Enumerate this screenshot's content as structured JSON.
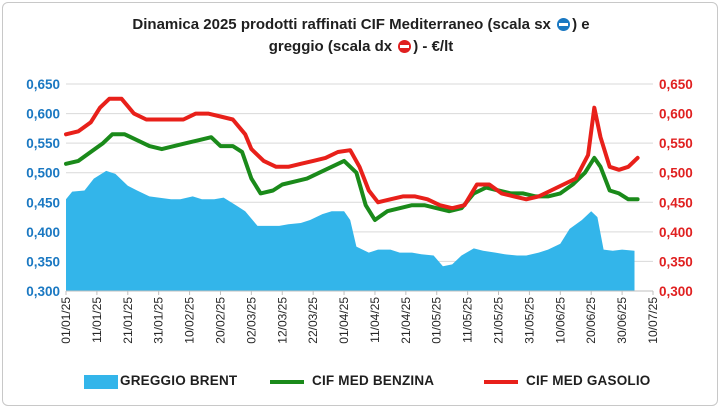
{
  "title": {
    "line1": "Dinamica 2025 prodotti raffinati CIF Mediterraneo (scala sx",
    "line1_end": ") e",
    "line2": "greggio (scala dx",
    "line2_end": ") - €/lt",
    "left_scale_icon": "blue-circle-minus-icon",
    "right_scale_icon": "red-circle-minus-icon"
  },
  "chart_data": {
    "type": "area",
    "title": "Dinamica 2025 prodotti raffinati CIF Mediterraneo (scala sx ⊖) e greggio (scala dx ⊖) - €/lt",
    "x_ticks": [
      "01/01/25",
      "11/01/25",
      "21/01/25",
      "31/01/25",
      "10/02/25",
      "20/02/25",
      "02/03/25",
      "12/03/25",
      "22/03/25",
      "01/04/25",
      "11/04/25",
      "21/04/25",
      "01/05/25",
      "11/05/25",
      "21/05/25",
      "31/05/25",
      "10/06/25",
      "20/06/25",
      "30/06/25",
      "10/07/25"
    ],
    "x_range": [
      "01/01/25",
      "10/07/25"
    ],
    "y_left": {
      "min": 0.3,
      "max": 0.65,
      "ticks": [
        "0,300",
        "0,350",
        "0,400",
        "0,450",
        "0,500",
        "0,550",
        "0,600",
        "0,650"
      ],
      "color": "#1a78c2"
    },
    "y_right": {
      "min": 0.3,
      "max": 0.65,
      "ticks": [
        "0,300",
        "0,350",
        "0,400",
        "0,450",
        "0,500",
        "0,550",
        "0,600",
        "0,650"
      ],
      "color": "#e02020"
    },
    "grid": "horizontal",
    "legend_position": "bottom",
    "series": [
      {
        "name": "GREGGIO BRENT",
        "kind": "area",
        "color": "#33b5ea",
        "points": [
          [
            "01/01/25",
            0.455
          ],
          [
            "03/01/25",
            0.468
          ],
          [
            "07/01/25",
            0.47
          ],
          [
            "10/01/25",
            0.49
          ],
          [
            "14/01/25",
            0.503
          ],
          [
            "17/01/25",
            0.498
          ],
          [
            "21/01/25",
            0.478
          ],
          [
            "24/01/25",
            0.47
          ],
          [
            "28/01/25",
            0.46
          ],
          [
            "31/01/25",
            0.458
          ],
          [
            "04/02/25",
            0.455
          ],
          [
            "07/02/25",
            0.455
          ],
          [
            "11/02/25",
            0.46
          ],
          [
            "14/02/25",
            0.455
          ],
          [
            "18/02/25",
            0.455
          ],
          [
            "21/02/25",
            0.458
          ],
          [
            "25/02/25",
            0.445
          ],
          [
            "28/02/25",
            0.435
          ],
          [
            "04/03/25",
            0.41
          ],
          [
            "07/03/25",
            0.41
          ],
          [
            "11/03/25",
            0.41
          ],
          [
            "14/03/25",
            0.413
          ],
          [
            "18/03/25",
            0.415
          ],
          [
            "21/03/25",
            0.42
          ],
          [
            "25/03/25",
            0.43
          ],
          [
            "28/03/25",
            0.435
          ],
          [
            "01/04/25",
            0.435
          ],
          [
            "03/04/25",
            0.42
          ],
          [
            "05/04/25",
            0.375
          ],
          [
            "09/04/25",
            0.365
          ],
          [
            "12/04/25",
            0.37
          ],
          [
            "16/04/25",
            0.37
          ],
          [
            "19/04/25",
            0.365
          ],
          [
            "23/04/25",
            0.365
          ],
          [
            "26/04/25",
            0.362
          ],
          [
            "30/04/25",
            0.36
          ],
          [
            "03/05/25",
            0.342
          ],
          [
            "06/05/25",
            0.345
          ],
          [
            "09/05/25",
            0.36
          ],
          [
            "13/05/25",
            0.372
          ],
          [
            "16/05/25",
            0.368
          ],
          [
            "20/05/25",
            0.365
          ],
          [
            "23/05/25",
            0.362
          ],
          [
            "27/05/25",
            0.36
          ],
          [
            "30/05/25",
            0.36
          ],
          [
            "03/06/25",
            0.365
          ],
          [
            "06/06/25",
            0.37
          ],
          [
            "10/06/25",
            0.38
          ],
          [
            "13/06/25",
            0.405
          ],
          [
            "17/06/25",
            0.42
          ],
          [
            "20/06/25",
            0.435
          ],
          [
            "22/06/25",
            0.425
          ],
          [
            "24/06/25",
            0.37
          ],
          [
            "27/06/25",
            0.368
          ],
          [
            "30/06/25",
            0.37
          ],
          [
            "04/07/25",
            0.368
          ]
        ]
      },
      {
        "name": "CIF MED BENZINA",
        "kind": "line",
        "color": "#1a8a1a",
        "points": [
          [
            "01/01/25",
            0.515
          ],
          [
            "05/01/25",
            0.52
          ],
          [
            "09/01/25",
            0.535
          ],
          [
            "13/01/25",
            0.55
          ],
          [
            "16/01/25",
            0.565
          ],
          [
            "20/01/25",
            0.565
          ],
          [
            "24/01/25",
            0.555
          ],
          [
            "28/01/25",
            0.545
          ],
          [
            "01/02/25",
            0.54
          ],
          [
            "05/02/25",
            0.545
          ],
          [
            "09/02/25",
            0.55
          ],
          [
            "13/02/25",
            0.555
          ],
          [
            "17/02/25",
            0.56
          ],
          [
            "20/02/25",
            0.545
          ],
          [
            "24/02/25",
            0.545
          ],
          [
            "27/02/25",
            0.535
          ],
          [
            "02/03/25",
            0.49
          ],
          [
            "05/03/25",
            0.465
          ],
          [
            "09/03/25",
            0.47
          ],
          [
            "12/03/25",
            0.48
          ],
          [
            "16/03/25",
            0.485
          ],
          [
            "20/03/25",
            0.49
          ],
          [
            "24/03/25",
            0.5
          ],
          [
            "28/03/25",
            0.51
          ],
          [
            "01/04/25",
            0.52
          ],
          [
            "05/04/25",
            0.5
          ],
          [
            "08/04/25",
            0.445
          ],
          [
            "11/04/25",
            0.42
          ],
          [
            "15/04/25",
            0.435
          ],
          [
            "19/04/25",
            0.44
          ],
          [
            "23/04/25",
            0.445
          ],
          [
            "27/04/25",
            0.445
          ],
          [
            "01/05/25",
            0.44
          ],
          [
            "05/05/25",
            0.435
          ],
          [
            "09/05/25",
            0.44
          ],
          [
            "13/05/25",
            0.465
          ],
          [
            "17/05/25",
            0.475
          ],
          [
            "21/05/25",
            0.47
          ],
          [
            "25/05/25",
            0.465
          ],
          [
            "29/05/25",
            0.465
          ],
          [
            "02/06/25",
            0.46
          ],
          [
            "06/06/25",
            0.46
          ],
          [
            "10/06/25",
            0.465
          ],
          [
            "14/06/25",
            0.48
          ],
          [
            "18/06/25",
            0.5
          ],
          [
            "21/06/25",
            0.525
          ],
          [
            "23/06/25",
            0.51
          ],
          [
            "26/06/25",
            0.47
          ],
          [
            "29/06/25",
            0.465
          ],
          [
            "02/07/25",
            0.455
          ],
          [
            "05/07/25",
            0.455
          ]
        ]
      },
      {
        "name": "CIF MED GASOLIO",
        "kind": "line",
        "color": "#e8201a",
        "points": [
          [
            "01/01/25",
            0.565
          ],
          [
            "05/01/25",
            0.57
          ],
          [
            "09/01/25",
            0.585
          ],
          [
            "12/01/25",
            0.61
          ],
          [
            "15/01/25",
            0.625
          ],
          [
            "19/01/25",
            0.625
          ],
          [
            "23/01/25",
            0.6
          ],
          [
            "27/01/25",
            0.59
          ],
          [
            "31/01/25",
            0.59
          ],
          [
            "04/02/25",
            0.59
          ],
          [
            "08/02/25",
            0.59
          ],
          [
            "12/02/25",
            0.6
          ],
          [
            "16/02/25",
            0.6
          ],
          [
            "20/02/25",
            0.595
          ],
          [
            "24/02/25",
            0.59
          ],
          [
            "28/02/25",
            0.565
          ],
          [
            "02/03/25",
            0.54
          ],
          [
            "06/03/25",
            0.52
          ],
          [
            "10/03/25",
            0.51
          ],
          [
            "14/03/25",
            0.51
          ],
          [
            "18/03/25",
            0.515
          ],
          [
            "22/03/25",
            0.52
          ],
          [
            "26/03/25",
            0.525
          ],
          [
            "30/03/25",
            0.535
          ],
          [
            "03/04/25",
            0.538
          ],
          [
            "06/04/25",
            0.51
          ],
          [
            "09/04/25",
            0.47
          ],
          [
            "12/04/25",
            0.45
          ],
          [
            "16/04/25",
            0.455
          ],
          [
            "20/04/25",
            0.46
          ],
          [
            "24/04/25",
            0.46
          ],
          [
            "28/04/25",
            0.455
          ],
          [
            "02/05/25",
            0.445
          ],
          [
            "06/05/25",
            0.44
          ],
          [
            "10/05/25",
            0.445
          ],
          [
            "14/05/25",
            0.48
          ],
          [
            "18/05/25",
            0.48
          ],
          [
            "22/05/25",
            0.465
          ],
          [
            "26/05/25",
            0.46
          ],
          [
            "30/05/25",
            0.455
          ],
          [
            "03/06/25",
            0.46
          ],
          [
            "07/06/25",
            0.47
          ],
          [
            "11/06/25",
            0.48
          ],
          [
            "15/06/25",
            0.49
          ],
          [
            "19/06/25",
            0.53
          ],
          [
            "21/06/25",
            0.61
          ],
          [
            "23/06/25",
            0.56
          ],
          [
            "26/06/25",
            0.51
          ],
          [
            "29/06/25",
            0.505
          ],
          [
            "02/07/25",
            0.51
          ],
          [
            "05/07/25",
            0.525
          ]
        ]
      }
    ]
  }
}
